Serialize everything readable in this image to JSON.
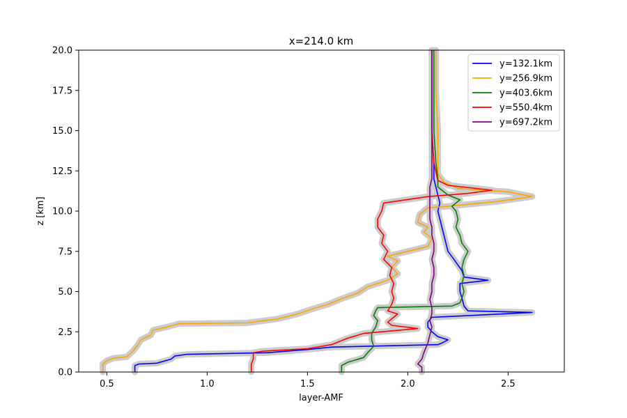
{
  "chart_data": {
    "type": "line",
    "title": "x=214.0 km",
    "xlabel": "layer-AMF",
    "ylabel": "z [km]",
    "xlim": [
      0.36,
      2.78
    ],
    "ylim": [
      0,
      20
    ],
    "x_ticks": [
      0.5,
      1.0,
      1.5,
      2.0,
      2.5
    ],
    "x_tick_labels": [
      "0.5",
      "1.0",
      "1.5",
      "2.0",
      "2.5"
    ],
    "y_ticks": [
      0,
      2.5,
      5,
      7.5,
      10,
      12.5,
      15,
      17.5,
      20
    ],
    "y_tick_labels": [
      "0.0",
      "2.5",
      "5.0",
      "7.5",
      "10.0",
      "12.5",
      "15.0",
      "17.5",
      "20.0"
    ],
    "grid": false,
    "legend_position": "top-right",
    "uncertainty_band_color": "#cccccc",
    "series": [
      {
        "name": "y=132.1km",
        "color": "#0000ff",
        "points": [
          [
            0.64,
            0
          ],
          [
            0.64,
            0.4
          ],
          [
            0.66,
            0.5
          ],
          [
            0.75,
            0.55
          ],
          [
            0.82,
            0.8
          ],
          [
            0.84,
            1.0
          ],
          [
            0.9,
            1.1
          ],
          [
            1.3,
            1.2
          ],
          [
            1.5,
            1.4
          ],
          [
            1.62,
            1.55
          ],
          [
            2.15,
            1.7
          ],
          [
            2.17,
            1.8
          ],
          [
            2.2,
            2.0
          ],
          [
            2.15,
            2.2
          ],
          [
            2.12,
            2.5
          ],
          [
            2.1,
            2.8
          ],
          [
            2.1,
            3.1
          ],
          [
            2.12,
            3.4
          ],
          [
            2.62,
            3.7
          ],
          [
            2.3,
            3.8
          ],
          [
            2.28,
            4.1
          ],
          [
            2.27,
            4.6
          ],
          [
            2.26,
            5.0
          ],
          [
            2.26,
            5.5
          ],
          [
            2.4,
            5.7
          ],
          [
            2.28,
            5.9
          ],
          [
            2.27,
            6.3
          ],
          [
            2.23,
            7.0
          ],
          [
            2.2,
            7.5
          ],
          [
            2.18,
            8.5
          ],
          [
            2.17,
            9.0
          ],
          [
            2.16,
            9.5
          ],
          [
            2.15,
            10.0
          ],
          [
            2.16,
            10.5
          ],
          [
            2.15,
            11.0
          ],
          [
            2.14,
            11.5
          ],
          [
            2.13,
            12.0
          ],
          [
            2.13,
            13
          ],
          [
            2.12,
            15
          ],
          [
            2.12,
            17.5
          ],
          [
            2.12,
            20
          ]
        ]
      },
      {
        "name": "y=256.9km",
        "color": "#ffa500",
        "points": [
          [
            0.48,
            0
          ],
          [
            0.48,
            0.5
          ],
          [
            0.5,
            0.7
          ],
          [
            0.53,
            0.85
          ],
          [
            0.6,
            0.95
          ],
          [
            0.63,
            1.3
          ],
          [
            0.65,
            1.6
          ],
          [
            0.67,
            2.0
          ],
          [
            0.72,
            2.3
          ],
          [
            0.73,
            2.6
          ],
          [
            0.8,
            2.8
          ],
          [
            0.86,
            3.0
          ],
          [
            1.2,
            3.05
          ],
          [
            1.35,
            3.3
          ],
          [
            1.45,
            3.6
          ],
          [
            1.52,
            3.9
          ],
          [
            1.6,
            4.2
          ],
          [
            1.68,
            4.6
          ],
          [
            1.75,
            4.9
          ],
          [
            1.8,
            5.3
          ],
          [
            1.9,
            5.7
          ],
          [
            1.95,
            6.1
          ],
          [
            1.92,
            6.5
          ],
          [
            1.95,
            6.9
          ],
          [
            1.9,
            7.2
          ],
          [
            2.0,
            7.5
          ],
          [
            2.1,
            7.8
          ],
          [
            2.12,
            8.3
          ],
          [
            2.08,
            8.7
          ],
          [
            2.1,
            9.0
          ],
          [
            2.05,
            9.3
          ],
          [
            2.06,
            9.8
          ],
          [
            2.1,
            10.2
          ],
          [
            2.2,
            10.3
          ],
          [
            2.45,
            10.6
          ],
          [
            2.62,
            10.9
          ],
          [
            2.5,
            11.2
          ],
          [
            2.25,
            11.4
          ],
          [
            2.18,
            11.8
          ],
          [
            2.15,
            12.3
          ],
          [
            2.15,
            13
          ],
          [
            2.15,
            15
          ],
          [
            2.14,
            17.5
          ],
          [
            2.14,
            20
          ]
        ]
      },
      {
        "name": "y=403.6km",
        "color": "#008000",
        "points": [
          [
            1.67,
            0
          ],
          [
            1.67,
            0.4
          ],
          [
            1.7,
            0.6
          ],
          [
            1.78,
            0.9
          ],
          [
            1.8,
            1.2
          ],
          [
            1.83,
            1.6
          ],
          [
            1.82,
            2.0
          ],
          [
            1.82,
            2.4
          ],
          [
            1.84,
            2.8
          ],
          [
            1.85,
            3.2
          ],
          [
            1.83,
            3.5
          ],
          [
            1.84,
            3.8
          ],
          [
            1.85,
            4.0
          ],
          [
            2.22,
            4.1
          ],
          [
            2.26,
            4.3
          ],
          [
            2.27,
            4.6
          ],
          [
            2.28,
            5.0
          ],
          [
            2.27,
            5.5
          ],
          [
            2.28,
            6.0
          ],
          [
            2.27,
            6.5
          ],
          [
            2.28,
            7.0
          ],
          [
            2.3,
            7.5
          ],
          [
            2.27,
            8.0
          ],
          [
            2.26,
            8.5
          ],
          [
            2.24,
            9.0
          ],
          [
            2.25,
            9.5
          ],
          [
            2.24,
            10.0
          ],
          [
            2.22,
            10.3
          ],
          [
            2.26,
            10.7
          ],
          [
            2.2,
            11.0
          ],
          [
            2.15,
            11.5
          ],
          [
            2.15,
            12.0
          ],
          [
            2.14,
            13
          ],
          [
            2.13,
            15
          ],
          [
            2.13,
            17.5
          ],
          [
            2.13,
            20
          ]
        ]
      },
      {
        "name": "y=550.4km",
        "color": "#ff0000",
        "points": [
          [
            1.22,
            0
          ],
          [
            1.22,
            0.5
          ],
          [
            1.23,
            0.8
          ],
          [
            1.23,
            1.2
          ],
          [
            1.28,
            1.3
          ],
          [
            1.5,
            1.45
          ],
          [
            1.62,
            1.7
          ],
          [
            1.7,
            2.1
          ],
          [
            1.78,
            2.4
          ],
          [
            2.05,
            2.7
          ],
          [
            1.92,
            2.9
          ],
          [
            1.9,
            3.1
          ],
          [
            1.95,
            3.6
          ],
          [
            1.9,
            3.8
          ],
          [
            1.92,
            4.2
          ],
          [
            1.93,
            4.6
          ],
          [
            1.92,
            5.0
          ],
          [
            1.93,
            5.5
          ],
          [
            1.91,
            6.0
          ],
          [
            1.92,
            6.5
          ],
          [
            1.88,
            7.0
          ],
          [
            1.9,
            7.5
          ],
          [
            1.87,
            8.0
          ],
          [
            1.88,
            8.5
          ],
          [
            1.85,
            9.0
          ],
          [
            1.85,
            9.5
          ],
          [
            1.87,
            10.0
          ],
          [
            1.88,
            10.5
          ],
          [
            2.1,
            10.9
          ],
          [
            2.3,
            11.1
          ],
          [
            2.42,
            11.3
          ],
          [
            2.2,
            11.6
          ],
          [
            2.15,
            11.9
          ],
          [
            2.13,
            13
          ],
          [
            2.12,
            15
          ],
          [
            2.12,
            17.5
          ],
          [
            2.12,
            20
          ]
        ]
      },
      {
        "name": "y=697.2km",
        "color": "#800080",
        "points": [
          [
            2.07,
            0
          ],
          [
            2.07,
            0.3
          ],
          [
            2.05,
            0.5
          ],
          [
            2.07,
            0.8
          ],
          [
            2.08,
            1.2
          ],
          [
            2.1,
            1.8
          ],
          [
            2.11,
            2.3
          ],
          [
            2.12,
            2.8
          ],
          [
            2.11,
            3.2
          ],
          [
            2.12,
            3.6
          ],
          [
            2.12,
            4.0
          ],
          [
            2.11,
            4.5
          ],
          [
            2.12,
            5.0
          ],
          [
            2.12,
            5.5
          ],
          [
            2.13,
            6.0
          ],
          [
            2.13,
            6.5
          ],
          [
            2.12,
            7.0
          ],
          [
            2.13,
            7.5
          ],
          [
            2.13,
            8.0
          ],
          [
            2.12,
            8.5
          ],
          [
            2.12,
            9.0
          ],
          [
            2.11,
            9.5
          ],
          [
            2.11,
            10.0
          ],
          [
            2.11,
            10.5
          ],
          [
            2.11,
            11.0
          ],
          [
            2.11,
            11.5
          ],
          [
            2.12,
            12.0
          ],
          [
            2.12,
            13
          ],
          [
            2.12,
            15
          ],
          [
            2.12,
            17.5
          ],
          [
            2.12,
            20
          ]
        ]
      }
    ]
  }
}
